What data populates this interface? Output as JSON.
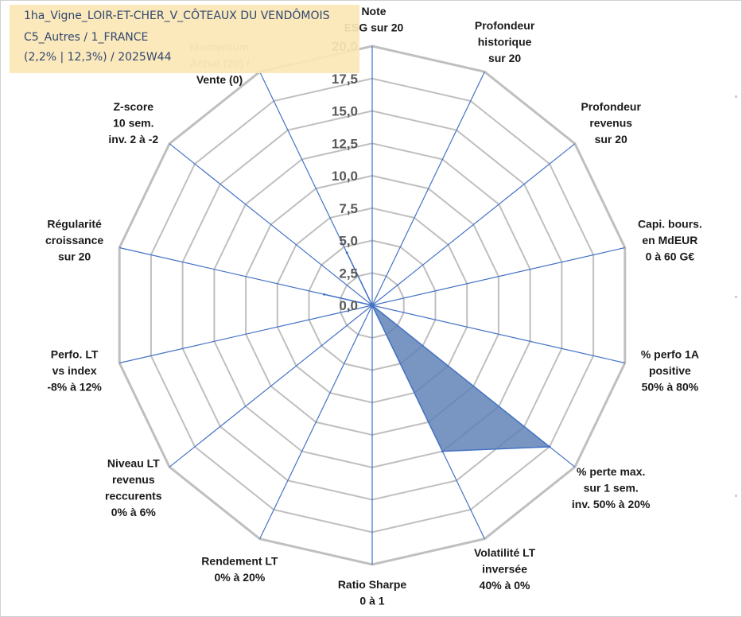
{
  "title": {
    "line1": "1ha_Vigne_LOIR-ET-CHER_V_CÔTEAUX DU VENDÔMOIS",
    "line2": "C5_Autres / 1_FRANCE",
    "line3": "(2,2% | 12,3%) / 2025W44"
  },
  "colors": {
    "grid": "#bfbfbf",
    "spoke": "#4472c4",
    "fill": "#5b7fb5",
    "outline": "#4472c4"
  },
  "chart_data": {
    "type": "radar",
    "rmax": 20,
    "ticks": [
      "0,0",
      "2,5",
      "5,0",
      "7,5",
      "10,0",
      "12,5",
      "15,0",
      "17,5",
      "20,0"
    ],
    "axes": [
      {
        "label": [
          "Note",
          "ESG sur 20"
        ],
        "value": 0
      },
      {
        "label": [
          "Profondeur",
          "historique",
          "sur 20"
        ],
        "value": 0
      },
      {
        "label": [
          "Profondeur",
          "revenus",
          "sur 20"
        ],
        "value": 0
      },
      {
        "label": [
          "Capi. bours.",
          "en MdEUR",
          "0 à 60 G€"
        ],
        "value": 0
      },
      {
        "label": [
          "% perfo 1A",
          "positive",
          "50% à 80%"
        ],
        "value": 0
      },
      {
        "label": [
          "% perte max.",
          "sur 1 sem.",
          "inv. 50% à 20%"
        ],
        "value": 17.5
      },
      {
        "label": [
          "Volatilité LT",
          "inversée",
          "40% à 0%"
        ],
        "value": 12.5
      },
      {
        "label": [
          "Ratio Sharpe",
          "0 à 1"
        ],
        "value": 0
      },
      {
        "label": [
          "Rendement LT",
          "0% à 20%"
        ],
        "value": 0
      },
      {
        "label": [
          "Niveau LT",
          "revenus",
          "reccurents",
          "0% à 6%"
        ],
        "value": 0
      },
      {
        "label": [
          "Perfo. LT",
          "vs index",
          "-8% à 12%"
        ],
        "value": 0
      },
      {
        "label": [
          "Régularité",
          "croissance",
          "sur 20"
        ],
        "value": 3.8
      },
      {
        "label": [
          "Z-score",
          "10 sem.",
          "inv. 2 à -2"
        ],
        "value": 0
      },
      {
        "label": [
          "Momentum",
          "Achat (20) /",
          "Vente (0)"
        ],
        "value": 4.5
      }
    ]
  }
}
